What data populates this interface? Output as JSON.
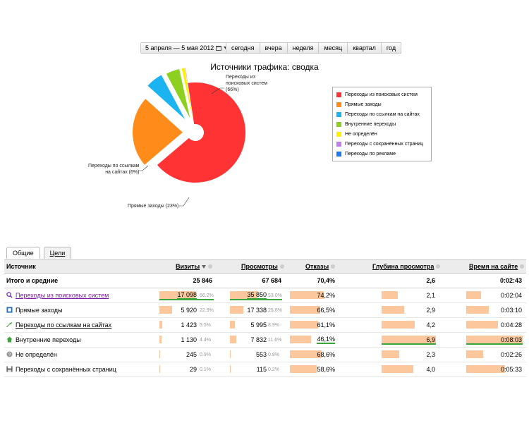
{
  "toolbar": {
    "date_range": "5 апреля — 5 мая 2012",
    "periods": [
      "сегодня",
      "вчера",
      "неделя",
      "месяц",
      "квартал",
      "год"
    ]
  },
  "chart_data": {
    "type": "pie",
    "title": "Источники трафика: сводка",
    "categories": [
      "Переходы из поисковых систем",
      "Прямые заходы",
      "Переходы по ссылкам на сайтах",
      "Внутренние переходы",
      "Не определён",
      "Переходы с сохранённых страниц",
      "Переходы по рекламе"
    ],
    "values": [
      17098,
      5920,
      1423,
      1130,
      245,
      29,
      0
    ],
    "colors": [
      "#ff3333",
      "#ff8c1a",
      "#1cb4f0",
      "#8dd020",
      "#fff000",
      "#c080e8",
      "#1f78f0"
    ],
    "legend_position": "right",
    "labels": [
      {
        "text": [
          "Переходы из",
          "поисковых систем",
          "(66%)"
        ]
      },
      {
        "text": [
          "Прямые заходы (23%)"
        ]
      },
      {
        "text": [
          "Переходы по ссылкам",
          "на сайтах (6%)"
        ]
      }
    ]
  },
  "tabs": {
    "general": "Общие",
    "goals": "Цели"
  },
  "table": {
    "headers": {
      "source": "Источник",
      "visits": "Визиты",
      "views": "Просмотры",
      "bounces": "Отказы",
      "depth": "Глубина просмотра",
      "time": "Время на сайте"
    },
    "total": {
      "label": "Итого и средние",
      "visits": "25 846",
      "views": "67 684",
      "bounces": "70,4%",
      "depth": "2,6",
      "time": "0:02:43"
    },
    "rows": [
      {
        "label": "Переходы из поисковых систем",
        "icon": "search-icon",
        "visits": "17 098",
        "visits_pct": "66.2%",
        "visits_f": 0.662,
        "views": "35 850",
        "views_pct": "53.0%",
        "views_f": 0.53,
        "bounces": "74,2%",
        "bounces_f": 0.742,
        "depth": "2,1",
        "depth_f": 0.3,
        "time": "0:02:04",
        "time_f": 0.26
      },
      {
        "label": "Прямые заходы",
        "icon": "direct-icon",
        "visits": "5 920",
        "visits_pct": "22.9%",
        "visits_f": 0.229,
        "views": "17 338",
        "views_pct": "25.6%",
        "views_f": 0.256,
        "bounces": "66,5%",
        "bounces_f": 0.665,
        "depth": "2,9",
        "depth_f": 0.42,
        "time": "0:03:10",
        "time_f": 0.4
      },
      {
        "label": "Переходы по ссылкам на сайтах",
        "icon": "link-arrow-icon",
        "visits": "1 423",
        "visits_pct": "5.5%",
        "visits_f": 0.055,
        "views": "5 995",
        "views_pct": "8.9%",
        "views_f": 0.089,
        "bounces": "61,1%",
        "bounces_f": 0.611,
        "depth": "4,2",
        "depth_f": 0.61,
        "time": "0:04:28",
        "time_f": 0.56
      },
      {
        "label": "Внутренние переходы",
        "icon": "home-icon",
        "visits": "1 130",
        "visits_pct": "4.4%",
        "visits_f": 0.044,
        "views": "7 832",
        "views_pct": "11.6%",
        "views_f": 0.116,
        "bounces": "46,1%",
        "bounces_f": 0.461,
        "depth": "6,9",
        "depth_f": 1.0,
        "time": "0:08:03",
        "time_f": 1.0
      },
      {
        "label": "Не определён",
        "icon": "unknown-icon",
        "visits": "245",
        "visits_pct": "0.9%",
        "visits_f": 0.009,
        "views": "553",
        "views_pct": "0.8%",
        "views_f": 0.008,
        "bounces": "68,6%",
        "bounces_f": 0.686,
        "depth": "2,3",
        "depth_f": 0.33,
        "time": "0:02:26",
        "time_f": 0.3
      },
      {
        "label": "Переходы с сохранённых страниц",
        "icon": "save-icon",
        "visits": "29",
        "visits_pct": "0.1%",
        "visits_f": 0.001,
        "views": "115",
        "views_pct": "0.2%",
        "views_f": 0.002,
        "bounces": "58,6%",
        "bounces_f": 0.586,
        "depth": "4,0",
        "depth_f": 0.58,
        "time": "0:05:33",
        "time_f": 0.69
      }
    ]
  }
}
